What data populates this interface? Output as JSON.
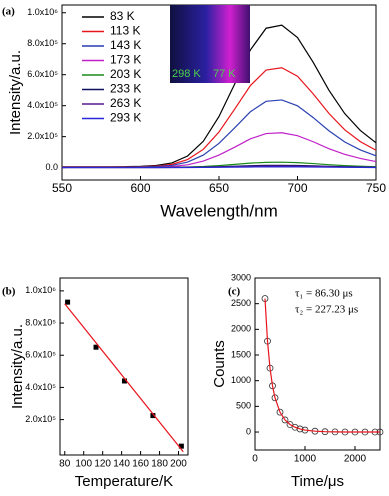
{
  "chart_data": [
    {
      "type": "line",
      "label": "(a)",
      "xlabel": "Wavelength/nm",
      "ylabel": "Intensity/a.u.",
      "xlim": [
        550,
        750
      ],
      "xticks": [
        550,
        600,
        650,
        700,
        750
      ],
      "ylim": [
        -80000,
        1050000
      ],
      "yticks": [
        {
          "value": 0,
          "label": "0.0"
        },
        {
          "value": 200000,
          "label": "2.0x10⁵"
        },
        {
          "value": 400000,
          "label": "4.0x10⁵"
        },
        {
          "value": 600000,
          "label": "6.0x10⁵"
        },
        {
          "value": 800000,
          "label": "8.0x10⁵"
        },
        {
          "value": 1000000,
          "label": "1.0x10⁶"
        }
      ],
      "legend": "upper left",
      "annotations": [
        "298 K",
        "77 K"
      ],
      "x": [
        550,
        560,
        570,
        580,
        590,
        600,
        610,
        620,
        630,
        640,
        650,
        660,
        670,
        680,
        690,
        700,
        710,
        720,
        730,
        740,
        750
      ],
      "series": [
        {
          "name": "83 K",
          "color": "#000000",
          "values": [
            5000,
            5000,
            5000,
            5000,
            6000,
            8000,
            14000,
            30000,
            75000,
            170000,
            330000,
            540000,
            760000,
            900000,
            920000,
            840000,
            680000,
            500000,
            350000,
            240000,
            160000
          ]
        },
        {
          "name": "113 K",
          "color": "#e8141c",
          "values": [
            5000,
            5000,
            5000,
            5000,
            5000,
            6000,
            10000,
            21000,
            52000,
            118000,
            230000,
            378000,
            530000,
            630000,
            645000,
            590000,
            476000,
            350000,
            245000,
            168000,
            112000
          ]
        },
        {
          "name": "143 K",
          "color": "#2a3fb0",
          "values": [
            3000,
            3000,
            3000,
            3000,
            3000,
            4000,
            7000,
            14000,
            36000,
            81000,
            157000,
            257000,
            361000,
            428000,
            437000,
            399000,
            323000,
            238000,
            166000,
            114000,
            76000
          ]
        },
        {
          "name": "173 K",
          "color": "#c020c8",
          "values": [
            2000,
            2000,
            2000,
            2000,
            2000,
            2000,
            3000,
            7000,
            18000,
            42000,
            81000,
            132000,
            186000,
            220000,
            225000,
            206000,
            167000,
            122000,
            86000,
            59000,
            39000
          ]
        },
        {
          "name": "203 K",
          "color": "#1a8a1a",
          "values": [
            1000,
            1000,
            1000,
            1000,
            1000,
            1000,
            1500,
            2000,
            4000,
            7000,
            13000,
            21000,
            29000,
            34000,
            35000,
            32000,
            26000,
            19000,
            13000,
            9000,
            6000
          ]
        },
        {
          "name": "233 K",
          "color": "#101060",
          "values": [
            500,
            500,
            500,
            500,
            500,
            500,
            700,
            1000,
            2000,
            3000,
            6000,
            9000,
            12500,
            14500,
            15000,
            14000,
            11000,
            8000,
            5500,
            4000,
            2500
          ]
        },
        {
          "name": "263 K",
          "color": "#5a1a8a",
          "values": [
            300,
            300,
            300,
            300,
            300,
            300,
            500,
            700,
            1300,
            2000,
            4000,
            6000,
            8300,
            9700,
            10000,
            9300,
            7500,
            5400,
            3700,
            2600,
            1700
          ]
        },
        {
          "name": "293 K",
          "color": "#2828d8",
          "values": [
            200,
            200,
            200,
            200,
            200,
            200,
            300,
            400,
            700,
            1000,
            2000,
            3000,
            4100,
            4800,
            5000,
            4600,
            3700,
            2700,
            1800,
            1300,
            900
          ]
        }
      ]
    },
    {
      "type": "scatter",
      "label": "(b)",
      "xlabel": "Temperature/K",
      "ylabel": "Intensity/a.u.",
      "xlim": [
        75,
        210
      ],
      "xticks": [
        80,
        100,
        120,
        140,
        160,
        180,
        200
      ],
      "ylim": [
        -20000,
        1080000
      ],
      "yticks": [
        {
          "value": 200000,
          "label": "2.0x10⁵"
        },
        {
          "value": 400000,
          "label": "4.0x10⁵"
        },
        {
          "value": 600000,
          "label": "6.0x10⁵"
        },
        {
          "value": 800000,
          "label": "8.0x10⁵"
        },
        {
          "value": 1000000,
          "label": "1.0x10⁶"
        }
      ],
      "series": [
        {
          "color": "#000000",
          "marker": "square",
          "x": [
            83,
            113,
            143,
            173,
            203
          ],
          "values": [
            930000,
            650000,
            440000,
            225000,
            35000
          ]
        },
        {
          "color": "#e8141c",
          "x": [
            80,
            205
          ],
          "values": [
            920000,
            0
          ]
        }
      ]
    },
    {
      "type": "scatter",
      "label": "(c)",
      "xlabel": "Time/μs",
      "ylabel": "Counts",
      "xlim": [
        0,
        2500
      ],
      "xticks": [
        0,
        1000,
        2000
      ],
      "ylim": [
        -350,
        3000
      ],
      "yticks": [
        0,
        500,
        1000,
        1500,
        2000,
        2500,
        3000
      ],
      "annotations": [
        "τ₁ = 86.30 μs",
        "τ₂ = 227.23 μs"
      ],
      "series": [
        {
          "color": "#333333",
          "marker": "circle",
          "x": [
            200,
            250,
            300,
            350,
            400,
            500,
            600,
            700,
            800,
            900,
            1000,
            1200,
            1400,
            1600,
            1800,
            2000,
            2200,
            2400,
            2500
          ],
          "values": [
            2600,
            1771,
            1245,
            900,
            667,
            387,
            236,
            147,
            93,
            60,
            38,
            16,
            7,
            3,
            1,
            0,
            0,
            0,
            0
          ]
        },
        {
          "color": "#e8141c",
          "x": [
            200,
            250,
            300,
            350,
            400,
            500,
            600,
            700,
            800,
            900,
            1000,
            1200,
            1400,
            1600,
            1800,
            2000,
            2200,
            2400,
            2500
          ],
          "values": [
            2600,
            1771,
            1245,
            900,
            667,
            387,
            236,
            147,
            93,
            60,
            38,
            16,
            7,
            3,
            1,
            0,
            0,
            0,
            0
          ]
        }
      ]
    }
  ]
}
